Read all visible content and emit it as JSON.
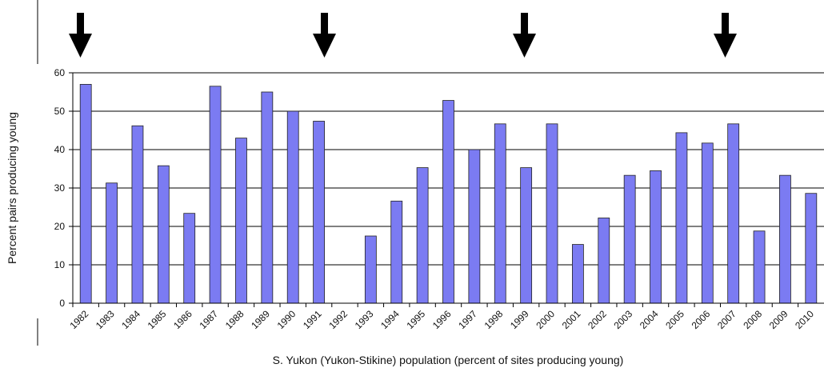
{
  "chart_data": {
    "type": "bar",
    "x_label": "S. Yukon (Yukon-Stikine) population (percent of sites producing young)",
    "y_label": "Percent pairs producing young",
    "categories": [
      "1982",
      "1983",
      "1984",
      "1985",
      "1986",
      "1987",
      "1988",
      "1989",
      "1990",
      "1991",
      "1992",
      "1993",
      "1994",
      "1995",
      "1996",
      "1997",
      "1998",
      "1999",
      "2000",
      "2001",
      "2002",
      "2003",
      "2004",
      "2005",
      "2006",
      "2007",
      "2008",
      "2009",
      "2010"
    ],
    "values": [
      57,
      31.3,
      46.2,
      35.8,
      23.4,
      56.5,
      43,
      55,
      50,
      47.4,
      null,
      17.5,
      26.6,
      35.3,
      52.8,
      40,
      46.7,
      35.3,
      46.7,
      15.3,
      22.2,
      33.3,
      34.5,
      44.4,
      41.7,
      46.7,
      18.8,
      33.3,
      28.6
    ],
    "color": "#7b7bf2",
    "ylim": [
      0,
      60
    ],
    "yticks": [
      0,
      10,
      20,
      30,
      40,
      50,
      60
    ],
    "grid": true
  }
}
